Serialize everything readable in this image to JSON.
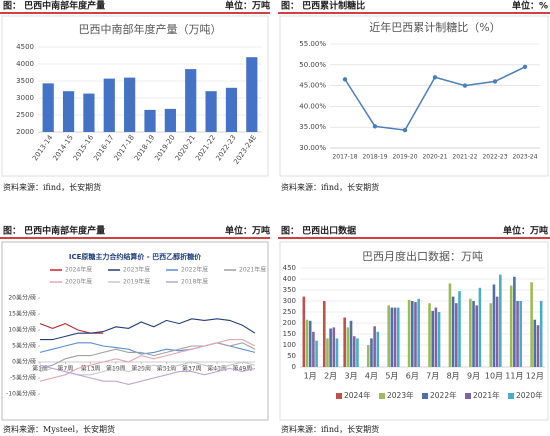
{
  "panels": [
    {
      "caption": "图： 巴西中南部年度产量",
      "unit": "单位：万吨",
      "source": "资料来源：ifind，长安期货"
    },
    {
      "caption": "图： 巴西累计制糖比",
      "unit": "单位：%",
      "source": "资料来源：ifind，长安期货"
    },
    {
      "caption": "图： 巴西中南部年度产量",
      "unit": "单位：万吨",
      "source": "资料来源：Mysteel，长安期货"
    },
    {
      "caption": "图： 巴西出口数据",
      "unit": "单位：万吨",
      "source": "资料来源：ifind，长安期货"
    }
  ],
  "chart_data": [
    {
      "type": "bar",
      "title": "巴西中南部年度产量（万吨）",
      "categories": [
        "2013-14",
        "2014-15",
        "2015-16",
        "2016-17",
        "2017-18",
        "2018-19",
        "2019-20",
        "2020-21",
        "2021-22",
        "2022-23",
        "2023-24E"
      ],
      "values": [
        3430,
        3200,
        3130,
        3570,
        3600,
        2650,
        2680,
        3850,
        3200,
        3300,
        4200
      ],
      "color": "#4472c4",
      "ylim": [
        2000,
        4500
      ],
      "yticks": [
        2000,
        2500,
        3000,
        3500,
        4000,
        4500
      ],
      "grid": true
    },
    {
      "type": "line",
      "title": "近年巴西累计制糖比（%）",
      "categories": [
        "2017-18",
        "2018-19",
        "2019-20",
        "2020-21",
        "2021-22",
        "2022-23",
        "2023-24"
      ],
      "values": [
        46.5,
        35.2,
        34.3,
        47.0,
        45.0,
        46.0,
        49.5
      ],
      "color": "#4a7ebb",
      "ylim": [
        30,
        55
      ],
      "yticks": [
        {
          "value": 30,
          "label": "30.00%"
        },
        {
          "value": 35,
          "label": "35.00%"
        },
        {
          "value": 40,
          "label": "40.00%"
        },
        {
          "value": 45,
          "label": "45.00%"
        },
        {
          "value": 50,
          "label": "50.00%"
        },
        {
          "value": 55,
          "label": "55.00%"
        }
      ],
      "grid": true
    },
    {
      "type": "line",
      "title": "ICE原糖主力合约结算价 - 巴西乙醇折糖价",
      "x": [
        1,
        4,
        7,
        10,
        13,
        16,
        19,
        22,
        25,
        28,
        31,
        34,
        37,
        40,
        43,
        46,
        49,
        52
      ],
      "series": [
        {
          "name": "2024年度",
          "color": "#c0262d",
          "values": [
            12,
            10.5,
            12,
            10,
            9,
            9,
            null,
            null,
            null,
            null,
            null,
            null,
            null,
            null,
            null,
            null,
            null,
            null
          ]
        },
        {
          "name": "2023年度",
          "color": "#1f3d7a",
          "values": [
            7,
            7,
            8,
            9,
            9,
            9.5,
            11,
            10.5,
            12.5,
            11,
            13,
            12,
            13.5,
            13,
            13.5,
            13,
            11.5,
            9
          ]
        },
        {
          "name": "2022年度",
          "color": "#5b8fd1",
          "values": [
            3,
            4,
            5,
            6,
            6,
            5,
            4.5,
            4,
            2.5,
            3,
            4,
            3.5,
            4,
            5,
            6,
            5,
            4,
            3
          ]
        },
        {
          "name": "2021年度",
          "color": "#a0a0a0",
          "values": [
            -2,
            -1,
            1,
            2,
            2,
            3,
            4,
            3,
            3,
            2,
            3,
            4,
            5,
            5,
            6,
            5,
            6,
            4
          ]
        },
        {
          "name": "2020年度",
          "color": "#e6a4b4",
          "values": [
            -6,
            -5,
            -4,
            -2,
            -1,
            0,
            1,
            0,
            2,
            1,
            2,
            3,
            4,
            5,
            6,
            7,
            7,
            5
          ]
        },
        {
          "name": "2019年度",
          "color": "#c8c8c8",
          "values": [
            -3,
            -2,
            -3,
            -4,
            -4,
            -3,
            -2,
            -3,
            -2,
            -1,
            -2,
            -1,
            0,
            -1,
            -2,
            -1,
            0,
            -1
          ]
        },
        {
          "name": "2018年度",
          "color": "#b8a6d6",
          "values": [
            -1,
            -2,
            -3,
            -4,
            -5,
            -6,
            -6,
            -7,
            -6,
            -5,
            -4,
            -3,
            -3,
            -4,
            -3,
            -2,
            -3,
            -2
          ]
        }
      ],
      "xlim": [
        1,
        52
      ],
      "xticks": [
        {
          "value": 1,
          "label": "第1周"
        },
        {
          "value": 7,
          "label": "第7周"
        },
        {
          "value": 13,
          "label": "第13周"
        },
        {
          "value": 19,
          "label": "第19周"
        },
        {
          "value": 25,
          "label": "第25周"
        },
        {
          "value": 31,
          "label": "第31周"
        },
        {
          "value": 37,
          "label": "第37周"
        },
        {
          "value": 43,
          "label": "第43周"
        },
        {
          "value": 49,
          "label": "第49周"
        }
      ],
      "ylim": [
        -10,
        20
      ],
      "yticks": [
        {
          "value": -10,
          "label": "-10美分/磅"
        },
        {
          "value": -5,
          "label": "-5美分/磅"
        },
        {
          "value": 0,
          "label": "0美分/磅"
        },
        {
          "value": 5,
          "label": "5美分/磅"
        },
        {
          "value": 10,
          "label": "10美分/磅"
        },
        {
          "value": 15,
          "label": "15美分/磅"
        },
        {
          "value": 20,
          "label": "20美分/磅"
        }
      ],
      "grid": false
    },
    {
      "type": "bar",
      "title": "巴西月度出口数据：万吨",
      "categories": [
        "1月",
        "2月",
        "3月",
        "4月",
        "5月",
        "6月",
        "7月",
        "8月",
        "9月",
        "10月",
        "11月",
        "12月"
      ],
      "series": [
        {
          "name": "2024年",
          "color": "#c0504d",
          "values": [
            320,
            300,
            225,
            null,
            null,
            null,
            null,
            null,
            null,
            null,
            null,
            null
          ]
        },
        {
          "name": "2023年",
          "color": "#9bbb59",
          "values": [
            215,
            130,
            180,
            100,
            280,
            305,
            290,
            380,
            310,
            290,
            370,
            385
          ]
        },
        {
          "name": "2022年",
          "color": "#4f6fa6",
          "values": [
            210,
            175,
            210,
            130,
            270,
            300,
            255,
            320,
            300,
            375,
            410,
            215
          ]
        },
        {
          "name": "2021年",
          "color": "#8064a2",
          "values": [
            160,
            180,
            140,
            185,
            270,
            295,
            270,
            290,
            280,
            320,
            300,
            190
          ]
        },
        {
          "name": "2020年",
          "color": "#4bacc6",
          "values": [
            120,
            130,
            130,
            160,
            270,
            310,
            250,
            345,
            360,
            420,
            300,
            300
          ]
        }
      ],
      "ylim": [
        0,
        450
      ],
      "yticks": [
        0,
        50,
        100,
        150,
        200,
        250,
        300,
        350,
        400,
        450
      ],
      "grid": true
    }
  ]
}
